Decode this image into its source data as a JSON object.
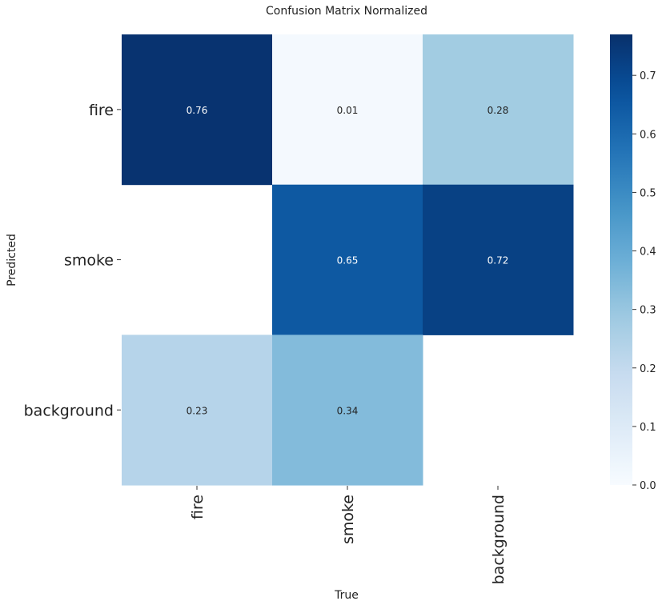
{
  "chart_data": {
    "type": "heatmap",
    "title": "Confusion Matrix Normalized",
    "xlabel": "True",
    "ylabel": "Predicted",
    "x_categories": [
      "fire",
      "smoke",
      "background"
    ],
    "y_categories": [
      "fire",
      "smoke",
      "background"
    ],
    "values": [
      [
        0.76,
        0.01,
        0.28
      ],
      [
        null,
        0.65,
        0.72
      ],
      [
        0.23,
        0.34,
        null
      ]
    ],
    "colorbar": {
      "range": [
        0,
        0.77
      ],
      "ticks": [
        "0.0",
        "0.1",
        "0.2",
        "0.3",
        "0.4",
        "0.5",
        "0.6",
        "0.7"
      ],
      "colormap": "Blues"
    }
  }
}
